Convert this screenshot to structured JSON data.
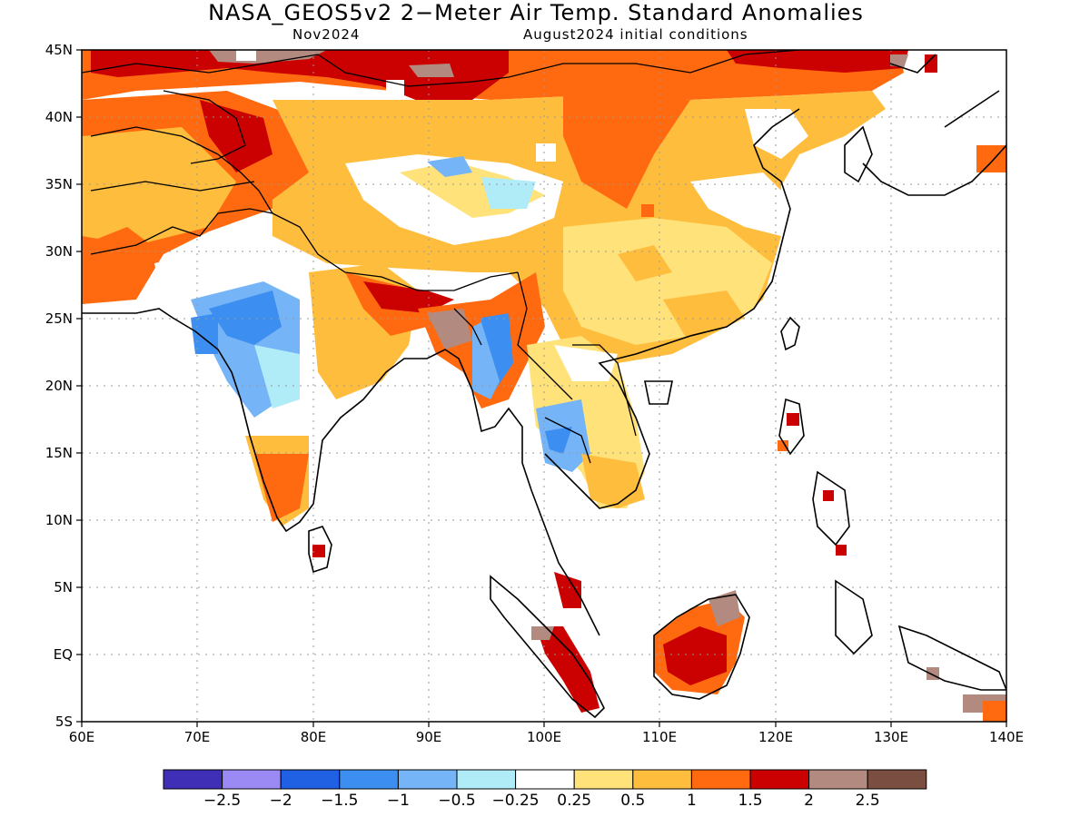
{
  "title": "NASA_GEOS5v2 2−Meter Air Temp. Standard Anomalies",
  "subtitle_left": "Nov2024",
  "subtitle_right": "August2024 initial conditions",
  "lat_labels": [
    "45N",
    "40N",
    "35N",
    "30N",
    "25N",
    "20N",
    "15N",
    "10N",
    "5N",
    "EQ",
    "5S"
  ],
  "lon_labels": [
    "60E",
    "70E",
    "80E",
    "90E",
    "100E",
    "110E",
    "120E",
    "130E",
    "140E"
  ],
  "colorbar": {
    "colors": [
      "#3f2fb6",
      "#9b8af4",
      "#2061e3",
      "#3c8ef0",
      "#75b4f6",
      "#b0ecf8",
      "#ffffff",
      "#ffe27a",
      "#ffbd3e",
      "#ff6a10",
      "#cb0000",
      "#b38a80",
      "#7a4e40"
    ],
    "labels": [
      "−2.5",
      "−2",
      "−1.5",
      "−1",
      "−0.5",
      "−0.25",
      "0.25",
      "0.5",
      "1",
      "1.5",
      "2",
      "2.5"
    ]
  }
}
